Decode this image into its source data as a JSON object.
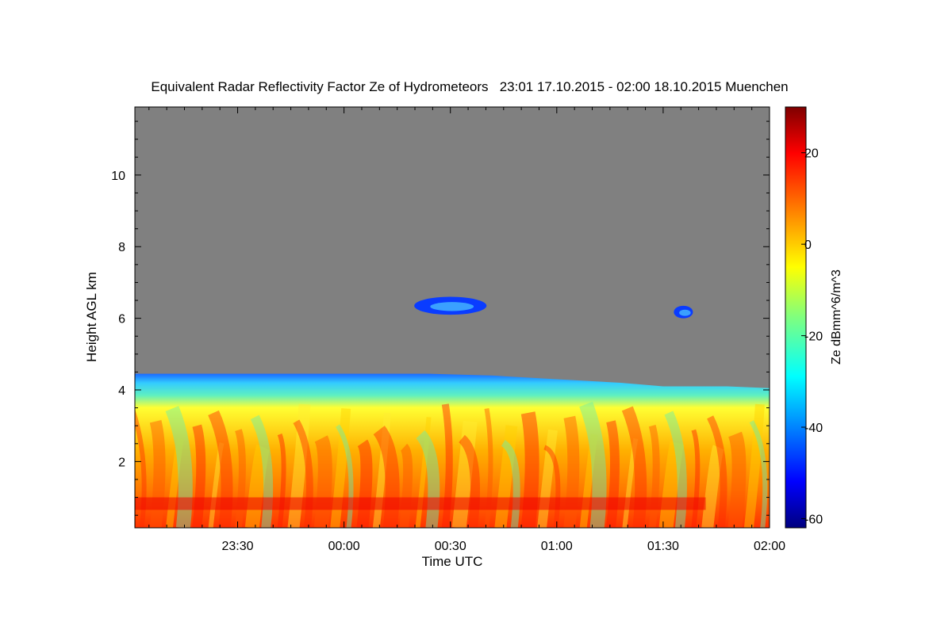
{
  "chart_data": {
    "type": "heatmap",
    "title": "Equivalent Radar Reflectivity Factor Ze of Hydrometeors   23:01 17.10.2015 - 02:00 18.10.2015 Muenchen",
    "xlabel": "Time UTC",
    "ylabel": "Height AGL km",
    "x_ticks": [
      "23:30",
      "00:00",
      "00:30",
      "01:00",
      "01:30",
      "02:00"
    ],
    "x_tick_hours": [
      -0.5,
      0,
      0.5,
      1.0,
      1.5,
      2.0
    ],
    "xlim_hours": [
      -0.983,
      2.0
    ],
    "y_ticks": [
      "2",
      "4",
      "6",
      "8",
      "10"
    ],
    "y_tick_values": [
      2,
      4,
      6,
      8,
      10
    ],
    "ylim": [
      0.15,
      11.9
    ],
    "colorbar": {
      "label": "Ze dBmm^6/m^3",
      "ticks": [
        "20",
        "0",
        "-20",
        "-40",
        "-60"
      ],
      "tick_values": [
        20,
        0,
        -20,
        -40,
        -60
      ],
      "range": [
        -62,
        30
      ],
      "colormap": "jet"
    },
    "background_color": "#808080",
    "features": {
      "precipitation_top_km": [
        [
          -0.983,
          4.45
        ],
        [
          -0.5,
          4.45
        ],
        [
          0.0,
          4.45
        ],
        [
          0.4,
          4.45
        ],
        [
          0.7,
          4.4
        ],
        [
          1.0,
          4.3
        ],
        [
          1.3,
          4.2
        ],
        [
          1.5,
          4.1
        ],
        [
          1.8,
          4.1
        ],
        [
          2.0,
          4.05
        ]
      ],
      "melting_layer_km": [
        0.65,
        1.0
      ],
      "upper_cloud_patches": [
        {
          "t_start": 0.33,
          "t_end": 0.67,
          "h_bottom": 6.1,
          "h_top": 6.6
        },
        {
          "t_start": 1.55,
          "t_end": 1.64,
          "h_bottom": 6.0,
          "h_top": 6.35
        }
      ]
    }
  }
}
